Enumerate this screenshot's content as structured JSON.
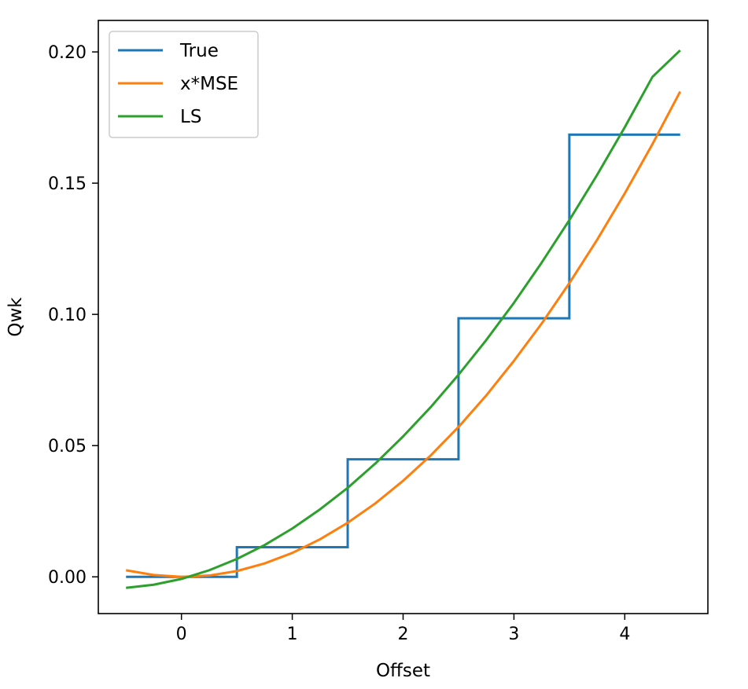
{
  "chart_data": {
    "type": "line",
    "xlabel": "Offset",
    "ylabel": "Qwk",
    "xlim": [
      -0.75,
      4.75
    ],
    "ylim": [
      -0.014,
      0.212
    ],
    "xticks": [
      0,
      1,
      2,
      3,
      4
    ],
    "yticks": [
      0.0,
      0.05,
      0.1,
      0.15,
      0.2
    ],
    "xtick_labels": [
      "0",
      "1",
      "2",
      "3",
      "4"
    ],
    "ytick_labels": [
      "0.00",
      "0.05",
      "0.10",
      "0.15",
      "0.20"
    ],
    "grid": false,
    "legend_position": "top-left",
    "series": [
      {
        "name": "True",
        "color": "#1f77b4",
        "step": true,
        "x": [
          -0.5,
          0.5,
          0.5,
          1.5,
          1.5,
          2.5,
          2.5,
          3.5,
          3.5,
          4.5
        ],
        "y": [
          0.0,
          0.0,
          0.0113,
          0.0113,
          0.0448,
          0.0448,
          0.0985,
          0.0985,
          0.1685,
          0.1685
        ]
      },
      {
        "name": "x*MSE",
        "color": "#ff7f0e",
        "x": [
          -0.5,
          -0.25,
          0.0,
          0.25,
          0.5,
          0.75,
          1.0,
          1.25,
          1.5,
          1.75,
          2.0,
          2.25,
          2.5,
          2.75,
          3.0,
          3.25,
          3.5,
          3.75,
          4.0,
          4.25,
          4.5
        ],
        "y": [
          0.0025,
          0.0007,
          0.0,
          0.0005,
          0.0022,
          0.0051,
          0.0091,
          0.0143,
          0.0206,
          0.028,
          0.0366,
          0.0463,
          0.0571,
          0.0691,
          0.0823,
          0.0965,
          0.1119,
          0.1284,
          0.1461,
          0.1649,
          0.1849
        ]
      },
      {
        "name": "LS",
        "color": "#2ca02c",
        "x": [
          -0.5,
          -0.25,
          0.0,
          0.25,
          0.5,
          0.75,
          1.0,
          1.25,
          1.5,
          1.75,
          2.0,
          2.25,
          2.5,
          2.75,
          3.0,
          3.25,
          3.5,
          3.75,
          4.0,
          4.25,
          4.5
        ],
        "y": [
          -0.0042,
          -0.003,
          -0.0008,
          0.0025,
          0.0068,
          0.0121,
          0.0184,
          0.0257,
          0.0339,
          0.0432,
          0.0535,
          0.0647,
          0.077,
          0.0902,
          0.1044,
          0.1197,
          0.1359,
          0.1531,
          0.1713,
          0.1905,
          0.2006
        ]
      }
    ]
  }
}
